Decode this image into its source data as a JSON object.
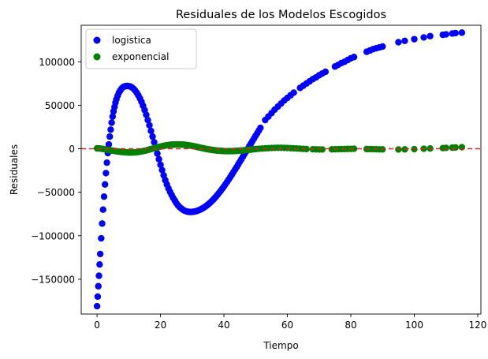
{
  "chart_data": {
    "type": "scatter",
    "title": "Residuales de los Modelos Escogidos",
    "xlabel": "Tiempo",
    "ylabel": "Residuales",
    "xlim": [
      -5,
      121
    ],
    "ylim": [
      -190000,
      142000
    ],
    "grid": false,
    "legend_position": "upper-left",
    "x_ticks": [
      0,
      20,
      40,
      60,
      80,
      100,
      120
    ],
    "x_tick_labels": [
      "0",
      "20",
      "40",
      "60",
      "80",
      "100",
      "120"
    ],
    "y_ticks": [
      -150000,
      -100000,
      -50000,
      0,
      50000,
      100000
    ],
    "y_tick_labels": [
      "−150000",
      "−100000",
      "−50000",
      "0",
      "50000",
      "100000"
    ],
    "reference_line": {
      "y": 0,
      "color": "#d62728",
      "style": "dashed"
    },
    "series": [
      {
        "name": "logistica",
        "color": "#0000ff",
        "points": [
          [
            0,
            -181000
          ],
          [
            0.2,
            -170000
          ],
          [
            0.4,
            -158000
          ],
          [
            0.6,
            -146000
          ],
          [
            0.8,
            -133000
          ],
          [
            1,
            -121000
          ],
          [
            1.3,
            -103000
          ],
          [
            1.6,
            -86000
          ],
          [
            1.9,
            -70000
          ],
          [
            2.2,
            -55000
          ],
          [
            2.5,
            -41000
          ],
          [
            2.8,
            -28000
          ],
          [
            3.1,
            -16000
          ],
          [
            3.4,
            -5000
          ],
          [
            3.7,
            5000
          ],
          [
            4,
            14000
          ],
          [
            4.3,
            22000
          ],
          [
            4.6,
            30000
          ],
          [
            4.9,
            37000
          ],
          [
            5.2,
            43000
          ],
          [
            5.5,
            48000
          ],
          [
            5.8,
            53000
          ],
          [
            6.1,
            57000
          ],
          [
            6.5,
            61000
          ],
          [
            6.9,
            64500
          ],
          [
            7.3,
            67000
          ],
          [
            7.7,
            69000
          ],
          [
            8.1,
            70500
          ],
          [
            8.5,
            71500
          ],
          [
            9,
            72000
          ],
          [
            9.5,
            72200
          ],
          [
            10,
            72000
          ],
          [
            10.5,
            71500
          ],
          [
            11,
            70500
          ],
          [
            11.5,
            69000
          ],
          [
            12,
            67000
          ],
          [
            12.5,
            64500
          ],
          [
            13,
            61500
          ],
          [
            13.5,
            58000
          ],
          [
            14,
            54000
          ],
          [
            14.5,
            49500
          ],
          [
            15,
            44500
          ],
          [
            15.5,
            39000
          ],
          [
            16,
            33000
          ],
          [
            16.5,
            27000
          ],
          [
            17,
            20500
          ],
          [
            17.5,
            14000
          ],
          [
            18,
            7500
          ],
          [
            18.5,
            1000
          ],
          [
            19,
            -5500
          ],
          [
            19.5,
            -12000
          ],
          [
            20,
            -18500
          ],
          [
            20.5,
            -24500
          ],
          [
            21,
            -30500
          ],
          [
            21.5,
            -36000
          ],
          [
            22,
            -41000
          ],
          [
            22.5,
            -45500
          ],
          [
            23,
            -49500
          ],
          [
            23.5,
            -53000
          ],
          [
            24,
            -56500
          ],
          [
            24.5,
            -59500
          ],
          [
            25,
            -62500
          ],
          [
            25.5,
            -65000
          ],
          [
            26,
            -67000
          ],
          [
            26.5,
            -68500
          ],
          [
            27,
            -70000
          ],
          [
            27.5,
            -71000
          ],
          [
            28,
            -71800
          ],
          [
            28.5,
            -72300
          ],
          [
            29,
            -72600
          ],
          [
            29.5,
            -72700
          ],
          [
            30,
            -72600
          ],
          [
            30.5,
            -72300
          ],
          [
            31,
            -72000
          ],
          [
            31.5,
            -71500
          ],
          [
            32,
            -70800
          ],
          [
            32.5,
            -70000
          ],
          [
            33,
            -69000
          ],
          [
            33.5,
            -68000
          ],
          [
            34,
            -66800
          ],
          [
            34.5,
            -65500
          ],
          [
            35,
            -64000
          ],
          [
            35.5,
            -62500
          ],
          [
            36,
            -60800
          ],
          [
            36.5,
            -59000
          ],
          [
            37,
            -57000
          ],
          [
            37.5,
            -55000
          ],
          [
            38,
            -52800
          ],
          [
            38.5,
            -50500
          ],
          [
            39,
            -48200
          ],
          [
            39.5,
            -45800
          ],
          [
            40,
            -43300
          ],
          [
            40.5,
            -40700
          ],
          [
            41,
            -38000
          ],
          [
            41.5,
            -35300
          ],
          [
            42,
            -32500
          ],
          [
            42.5,
            -29700
          ],
          [
            43,
            -26800
          ],
          [
            43.5,
            -23900
          ],
          [
            44,
            -21000
          ],
          [
            44.5,
            -18000
          ],
          [
            45,
            -15000
          ],
          [
            45.5,
            -12000
          ],
          [
            46,
            -9000
          ],
          [
            46.5,
            -6000
          ],
          [
            47,
            -3000
          ],
          [
            47.5,
            0
          ],
          [
            48,
            3000
          ],
          [
            48.5,
            6000
          ],
          [
            49,
            9000
          ],
          [
            49.5,
            12000
          ],
          [
            50,
            15000
          ],
          [
            50.5,
            18000
          ],
          [
            51,
            21000
          ],
          [
            51.5,
            24000
          ],
          [
            53,
            33000
          ],
          [
            54,
            37000
          ],
          [
            55,
            41000
          ],
          [
            56,
            45000
          ],
          [
            57,
            48500
          ],
          [
            58,
            52000
          ],
          [
            59,
            55500
          ],
          [
            60,
            58500
          ],
          [
            61,
            61500
          ],
          [
            62,
            64500
          ],
          [
            64,
            70000
          ],
          [
            65,
            72500
          ],
          [
            66,
            75000
          ],
          [
            67,
            77500
          ],
          [
            68,
            80000
          ],
          [
            69,
            82000
          ],
          [
            70,
            84500
          ],
          [
            71,
            86500
          ],
          [
            72,
            88500
          ],
          [
            75,
            94500
          ],
          [
            76,
            96500
          ],
          [
            77,
            98500
          ],
          [
            78,
            100000
          ],
          [
            79,
            102000
          ],
          [
            80,
            104000
          ],
          [
            81,
            105500
          ],
          [
            85,
            111500
          ],
          [
            86,
            113000
          ],
          [
            87,
            114500
          ],
          [
            88,
            115500
          ],
          [
            89,
            116500
          ],
          [
            90,
            117500
          ],
          [
            95,
            122500
          ],
          [
            97,
            124000
          ],
          [
            100,
            126000
          ],
          [
            103,
            128000
          ],
          [
            105,
            129500
          ],
          [
            109,
            131000
          ],
          [
            110,
            131500
          ],
          [
            112,
            132500
          ],
          [
            113,
            133000
          ],
          [
            115,
            133500
          ]
        ]
      },
      {
        "name": "exponencial",
        "color": "#008000",
        "points": [
          [
            0,
            500
          ],
          [
            0.5,
            400
          ],
          [
            1,
            200
          ],
          [
            1.5,
            0
          ],
          [
            2,
            -300
          ],
          [
            2.5,
            -600
          ],
          [
            3,
            -900
          ],
          [
            3.5,
            -1200
          ],
          [
            4,
            -1500
          ],
          [
            4.5,
            -1900
          ],
          [
            5,
            -2200
          ],
          [
            5.5,
            -2500
          ],
          [
            6,
            -2800
          ],
          [
            6.5,
            -3100
          ],
          [
            7,
            -3400
          ],
          [
            7.5,
            -3600
          ],
          [
            8,
            -3800
          ],
          [
            8.5,
            -4000
          ],
          [
            9,
            -4100
          ],
          [
            9.5,
            -4200
          ],
          [
            10,
            -4300
          ],
          [
            10.5,
            -4300
          ],
          [
            11,
            -4300
          ],
          [
            11.5,
            -4200
          ],
          [
            12,
            -4100
          ],
          [
            12.5,
            -3900
          ],
          [
            13,
            -3700
          ],
          [
            13.5,
            -3400
          ],
          [
            14,
            -3100
          ],
          [
            14.5,
            -2700
          ],
          [
            15,
            -2300
          ],
          [
            15.5,
            -1900
          ],
          [
            16,
            -1400
          ],
          [
            16.5,
            -900
          ],
          [
            17,
            -400
          ],
          [
            17.5,
            100
          ],
          [
            18,
            600
          ],
          [
            18.5,
            1100
          ],
          [
            19,
            1600
          ],
          [
            19.5,
            2100
          ],
          [
            20,
            2500
          ],
          [
            20.5,
            2900
          ],
          [
            21,
            3300
          ],
          [
            21.5,
            3700
          ],
          [
            22,
            4000
          ],
          [
            22.5,
            4300
          ],
          [
            23,
            4500
          ],
          [
            23.5,
            4700
          ],
          [
            24,
            4800
          ],
          [
            24.5,
            4900
          ],
          [
            25,
            5000
          ],
          [
            25.5,
            5000
          ],
          [
            26,
            5000
          ],
          [
            26.5,
            4900
          ],
          [
            27,
            4800
          ],
          [
            27.5,
            4600
          ],
          [
            28,
            4400
          ],
          [
            28.5,
            4200
          ],
          [
            29,
            3900
          ],
          [
            29.5,
            3600
          ],
          [
            30,
            3300
          ],
          [
            30.5,
            2900
          ],
          [
            31,
            2500
          ],
          [
            31.5,
            2100
          ],
          [
            32,
            1700
          ],
          [
            32.5,
            1300
          ],
          [
            33,
            900
          ],
          [
            33.5,
            500
          ],
          [
            34,
            100
          ],
          [
            34.5,
            -300
          ],
          [
            35,
            -600
          ],
          [
            35.5,
            -900
          ],
          [
            36,
            -1200
          ],
          [
            36.5,
            -1500
          ],
          [
            37,
            -1700
          ],
          [
            37.5,
            -1900
          ],
          [
            38,
            -2100
          ],
          [
            38.5,
            -2300
          ],
          [
            39,
            -2400
          ],
          [
            39.5,
            -2500
          ],
          [
            40,
            -2600
          ],
          [
            40.5,
            -2700
          ],
          [
            41,
            -2700
          ],
          [
            41.5,
            -2700
          ],
          [
            42,
            -2700
          ],
          [
            42.5,
            -2700
          ],
          [
            43,
            -2600
          ],
          [
            43.5,
            -2500
          ],
          [
            44,
            -2400
          ],
          [
            44.5,
            -2300
          ],
          [
            45,
            -2200
          ],
          [
            45.5,
            -2000
          ],
          [
            46,
            -1900
          ],
          [
            46.5,
            -1700
          ],
          [
            47,
            -1500
          ],
          [
            47.5,
            -1300
          ],
          [
            48,
            -1100
          ],
          [
            48.5,
            -900
          ],
          [
            49,
            -700
          ],
          [
            49.5,
            -500
          ],
          [
            50,
            -300
          ],
          [
            51,
            0
          ],
          [
            52,
            200
          ],
          [
            53,
            500
          ],
          [
            54,
            700
          ],
          [
            55,
            900
          ],
          [
            56,
            1000
          ],
          [
            57,
            1100
          ],
          [
            58,
            1100
          ],
          [
            59,
            1000
          ],
          [
            60,
            900
          ],
          [
            61,
            700
          ],
          [
            62,
            500
          ],
          [
            63,
            300
          ],
          [
            64,
            100
          ],
          [
            65,
            -100
          ],
          [
            66,
            -300
          ],
          [
            68,
            -600
          ],
          [
            69,
            -700
          ],
          [
            70,
            -800
          ],
          [
            71,
            -800
          ],
          [
            74,
            -700
          ],
          [
            75,
            -600
          ],
          [
            76,
            -500
          ],
          [
            77,
            -400
          ],
          [
            78,
            -300
          ],
          [
            79,
            -200
          ],
          [
            80,
            -100
          ],
          [
            81,
            0
          ],
          [
            85,
            -300
          ],
          [
            86,
            -400
          ],
          [
            87,
            -500
          ],
          [
            88,
            -600
          ],
          [
            89,
            -700
          ],
          [
            90,
            -700
          ],
          [
            95,
            -800
          ],
          [
            97,
            -700
          ],
          [
            100,
            -500
          ],
          [
            103,
            0
          ],
          [
            105,
            300
          ],
          [
            109,
            800
          ],
          [
            110,
            1000
          ],
          [
            112,
            1300
          ],
          [
            113,
            1500
          ],
          [
            115,
            1800
          ]
        ]
      }
    ]
  }
}
